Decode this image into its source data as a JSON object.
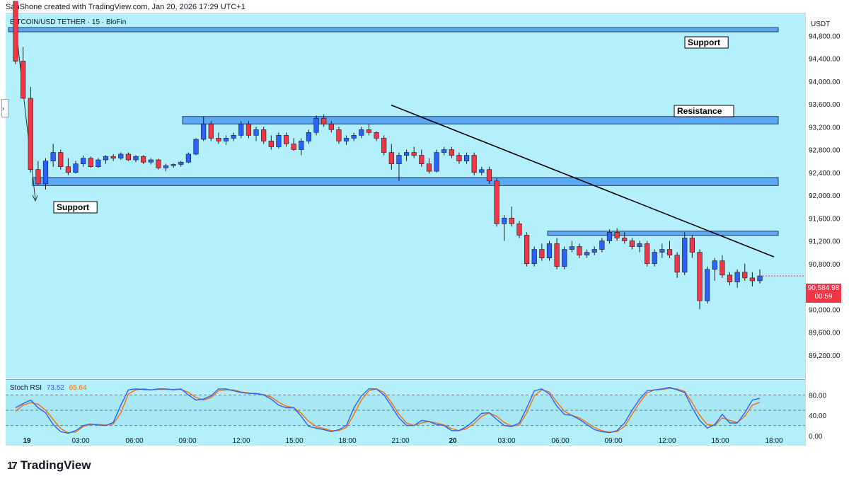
{
  "header": {
    "credit": "SanShone created with TradingView.com, Jan 20, 2026 17:29 UTC+1",
    "symbol": "BITCOIN/USD TETHER · 15 · BloFin"
  },
  "axis": {
    "currency": "USDT"
  },
  "price_tag": {
    "price": "90,584.98",
    "countdown": "00:59"
  },
  "rsi": {
    "title": "Stoch RSI",
    "k_value": "73.52",
    "d_value": "65.64"
  },
  "colors": {
    "background": "#b3f0fb",
    "zone": "#5aa9f2",
    "up": "#2962ff",
    "down": "#f23645",
    "k_line": "#2962ff",
    "d_line": "#ff6d00"
  },
  "brand": {
    "logo_text": "TradingView",
    "logo_icon": "tradingview-logo-icon"
  },
  "annotations": [
    {
      "text": "Support"
    },
    {
      "text": "Resistance"
    },
    {
      "text": "Support"
    }
  ],
  "chart_data": {
    "type": "candlestick",
    "symbol": "BITCOIN/USD TETHER",
    "interval": "15",
    "exchange": "BloFin",
    "ylim": [
      88800,
      95200
    ],
    "y_ticks": [
      "94,800.00",
      "94,400.00",
      "94,000.00",
      "93,600.00",
      "93,200.00",
      "92,800.00",
      "92,400.00",
      "92,000.00",
      "91,600.00",
      "91,200.00",
      "90,800.00",
      "90,400.00",
      "90,000.00",
      "89,600.00",
      "89,200.00"
    ],
    "x_ticks": [
      "19",
      "03:00",
      "06:00",
      "09:00",
      "12:00",
      "15:00",
      "18:00",
      "21:00",
      "20",
      "03:00",
      "06:00",
      "09:00",
      "12:00",
      "15:00",
      "18:00"
    ],
    "zones": [
      {
        "label": "Support",
        "from": 94870,
        "to": 94940
      },
      {
        "label": "Resistance",
        "from": 93250,
        "to": 93380
      },
      {
        "label": "Support",
        "from": 92170,
        "to": 92310
      },
      {
        "label": "",
        "from": 91310,
        "to": 91370
      }
    ],
    "trendline": {
      "from": {
        "time": "Jan 19 21:00",
        "price": 93580
      },
      "to": {
        "time": "Jan 20 18:00",
        "price": 90920
      }
    },
    "last_price": 90584.98,
    "rsi_levels": [
      80,
      50,
      20
    ],
    "rsi_ticks": [
      "80.00",
      "40.00",
      "0.00"
    ],
    "rsi_range": [
      0,
      100
    ],
    "rsi_k": [
      55,
      63,
      70,
      55,
      45,
      22,
      8,
      5,
      10,
      20,
      23,
      21,
      20,
      26,
      60,
      90,
      92,
      91,
      90,
      92,
      92,
      90,
      92,
      80,
      70,
      72,
      78,
      92,
      92,
      88,
      85,
      83,
      83,
      80,
      72,
      60,
      55,
      55,
      38,
      18,
      15,
      12,
      8,
      12,
      20,
      55,
      78,
      92,
      92,
      80,
      58,
      35,
      20,
      20,
      30,
      28,
      22,
      20,
      10,
      10,
      18,
      30,
      44,
      45,
      32,
      20,
      18,
      25,
      55,
      88,
      92,
      82,
      58,
      42,
      40,
      32,
      22,
      12,
      8,
      6,
      10,
      25,
      50,
      72,
      88,
      90,
      92,
      95,
      90,
      85,
      55,
      30,
      15,
      22,
      42,
      25,
      25,
      45,
      70,
      73.52
    ],
    "rsi_d": [
      48,
      60,
      65,
      62,
      50,
      32,
      14,
      6,
      7,
      18,
      22,
      22,
      21,
      23,
      45,
      82,
      90,
      92,
      90,
      91,
      91,
      91,
      91,
      85,
      75,
      70,
      75,
      88,
      90,
      90,
      86,
      84,
      82,
      81,
      76,
      66,
      58,
      55,
      44,
      28,
      18,
      14,
      10,
      10,
      16,
      42,
      70,
      88,
      92,
      85,
      65,
      42,
      25,
      20,
      25,
      28,
      25,
      21,
      14,
      10,
      14,
      24,
      38,
      45,
      38,
      26,
      19,
      21,
      45,
      78,
      90,
      86,
      66,
      48,
      40,
      35,
      26,
      16,
      10,
      7,
      8,
      18,
      42,
      65,
      84,
      90,
      91,
      93,
      92,
      87,
      65,
      40,
      22,
      20,
      35,
      30,
      26,
      38,
      60,
      65.64
    ],
    "ohlc": [
      [
        95400,
        95400,
        94300,
        94350
      ],
      [
        94350,
        94600,
        93700,
        93700
      ],
      [
        93700,
        93900,
        92400,
        92450
      ],
      [
        92450,
        92600,
        92180,
        92200
      ],
      [
        92200,
        92650,
        92100,
        92600
      ],
      [
        92600,
        92900,
        92500,
        92750
      ],
      [
        92750,
        92800,
        92450,
        92500
      ],
      [
        92500,
        92650,
        92350,
        92400
      ],
      [
        92400,
        92600,
        92380,
        92550
      ],
      [
        92550,
        92700,
        92500,
        92650
      ],
      [
        92650,
        92680,
        92480,
        92500
      ],
      [
        92500,
        92650,
        92480,
        92620
      ],
      [
        92620,
        92700,
        92550,
        92680
      ],
      [
        92680,
        92720,
        92600,
        92650
      ],
      [
        92650,
        92750,
        92620,
        92720
      ],
      [
        92720,
        92750,
        92600,
        92620
      ],
      [
        92620,
        92700,
        92580,
        92680
      ],
      [
        92680,
        92700,
        92550,
        92580
      ],
      [
        92580,
        92650,
        92540,
        92620
      ],
      [
        92620,
        92640,
        92450,
        92480
      ],
      [
        92480,
        92550,
        92420,
        92520
      ],
      [
        92520,
        92560,
        92480,
        92540
      ],
      [
        92540,
        92600,
        92500,
        92580
      ],
      [
        92580,
        92750,
        92560,
        92720
      ],
      [
        92720,
        93000,
        92700,
        92980
      ],
      [
        92980,
        93380,
        92950,
        93250
      ],
      [
        93250,
        93300,
        92950,
        93000
      ],
      [
        93000,
        93100,
        92900,
        92950
      ],
      [
        92950,
        93050,
        92880,
        93000
      ],
      [
        93000,
        93100,
        92950,
        93050
      ],
      [
        93050,
        93300,
        93000,
        93250
      ],
      [
        93250,
        93300,
        93000,
        93050
      ],
      [
        93050,
        93200,
        92950,
        93150
      ],
      [
        93150,
        93200,
        92900,
        92950
      ],
      [
        92950,
        93050,
        92800,
        92850
      ],
      [
        92850,
        93100,
        92820,
        93050
      ],
      [
        93050,
        93100,
        92850,
        92900
      ],
      [
        92900,
        93000,
        92780,
        92800
      ],
      [
        92800,
        93000,
        92700,
        92950
      ],
      [
        92950,
        93150,
        92900,
        93100
      ],
      [
        93100,
        93400,
        93050,
        93350
      ],
      [
        93350,
        93420,
        93200,
        93250
      ],
      [
        93250,
        93300,
        93100,
        93150
      ],
      [
        93150,
        93200,
        92900,
        92950
      ],
      [
        92950,
        93050,
        92880,
        93000
      ],
      [
        93000,
        93100,
        92950,
        93050
      ],
      [
        93050,
        93200,
        93000,
        93150
      ],
      [
        93150,
        93250,
        93050,
        93100
      ],
      [
        93100,
        93120,
        92950,
        93000
      ],
      [
        93000,
        93050,
        92700,
        92750
      ],
      [
        92750,
        92900,
        92450,
        92550
      ],
      [
        92550,
        92750,
        92250,
        92700
      ],
      [
        92700,
        92800,
        92600,
        92750
      ],
      [
        92750,
        92850,
        92650,
        92700
      ],
      [
        92700,
        92800,
        92500,
        92550
      ],
      [
        92550,
        92650,
        92380,
        92420
      ],
      [
        92420,
        92800,
        92400,
        92750
      ],
      [
        92750,
        92850,
        92700,
        92800
      ],
      [
        92800,
        92850,
        92650,
        92700
      ],
      [
        92700,
        92750,
        92550,
        92600
      ],
      [
        92600,
        92750,
        92550,
        92700
      ],
      [
        92700,
        92750,
        92350,
        92400
      ],
      [
        92400,
        92500,
        92350,
        92450
      ],
      [
        92450,
        92500,
        92200,
        92250
      ],
      [
        92250,
        92300,
        91450,
        91500
      ],
      [
        91500,
        91650,
        91200,
        91600
      ],
      [
        91600,
        91800,
        91450,
        91500
      ],
      [
        91500,
        91550,
        91250,
        91300
      ],
      [
        91300,
        91350,
        90750,
        90800
      ],
      [
        90800,
        91100,
        90750,
        91050
      ],
      [
        91050,
        91150,
        90850,
        90900
      ],
      [
        90900,
        91200,
        90850,
        91150
      ],
      [
        91150,
        91250,
        90700,
        90750
      ],
      [
        90750,
        91100,
        90700,
        91050
      ],
      [
        91050,
        91200,
        91000,
        91100
      ],
      [
        91100,
        91150,
        90900,
        90950
      ],
      [
        90950,
        91050,
        90900,
        91000
      ],
      [
        91000,
        91100,
        90950,
        91050
      ],
      [
        91050,
        91250,
        91000,
        91200
      ],
      [
        91200,
        91400,
        91150,
        91350
      ],
      [
        91350,
        91420,
        91200,
        91250
      ],
      [
        91250,
        91350,
        91150,
        91200
      ],
      [
        91200,
        91250,
        91050,
        91100
      ],
      [
        91100,
        91200,
        91000,
        91150
      ],
      [
        91150,
        91200,
        90750,
        90800
      ],
      [
        90800,
        91050,
        90750,
        91000
      ],
      [
        91000,
        91150,
        90900,
        91050
      ],
      [
        91050,
        91200,
        90900,
        90950
      ],
      [
        90950,
        91000,
        90550,
        90650
      ],
      [
        90650,
        91350,
        90600,
        91250
      ],
      [
        91250,
        91300,
        90900,
        91000
      ],
      [
        91000,
        91050,
        90000,
        90150
      ],
      [
        90150,
        90750,
        90100,
        90700
      ],
      [
        90700,
        90900,
        90500,
        90850
      ],
      [
        90850,
        90950,
        90550,
        90600
      ],
      [
        90600,
        90650,
        90420,
        90480
      ],
      [
        90480,
        90700,
        90380,
        90650
      ],
      [
        90650,
        90800,
        90500,
        90550
      ],
      [
        90550,
        90650,
        90400,
        90500
      ],
      [
        90500,
        90700,
        90450,
        90584.98
      ]
    ]
  }
}
